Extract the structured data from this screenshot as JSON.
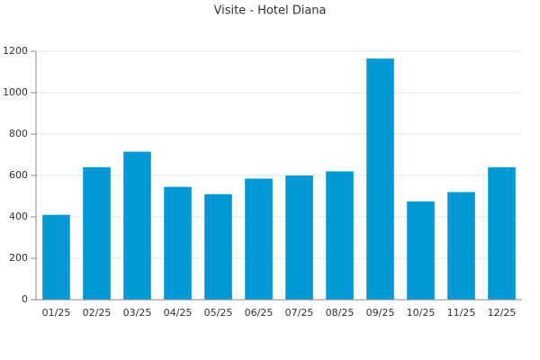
{
  "chart_data": {
    "type": "bar",
    "title": "Visite - Hotel Diana",
    "categories": [
      "01/25",
      "02/25",
      "03/25",
      "04/25",
      "05/25",
      "06/25",
      "07/25",
      "08/25",
      "09/25",
      "10/25",
      "11/25",
      "12/25"
    ],
    "values": [
      410,
      640,
      715,
      545,
      510,
      585,
      600,
      620,
      1165,
      475,
      520,
      640
    ],
    "color": "#0398d6",
    "ylim": [
      0,
      1200
    ],
    "yticks": [
      0,
      200,
      400,
      600,
      800,
      1000,
      1200
    ],
    "grid": true
  }
}
